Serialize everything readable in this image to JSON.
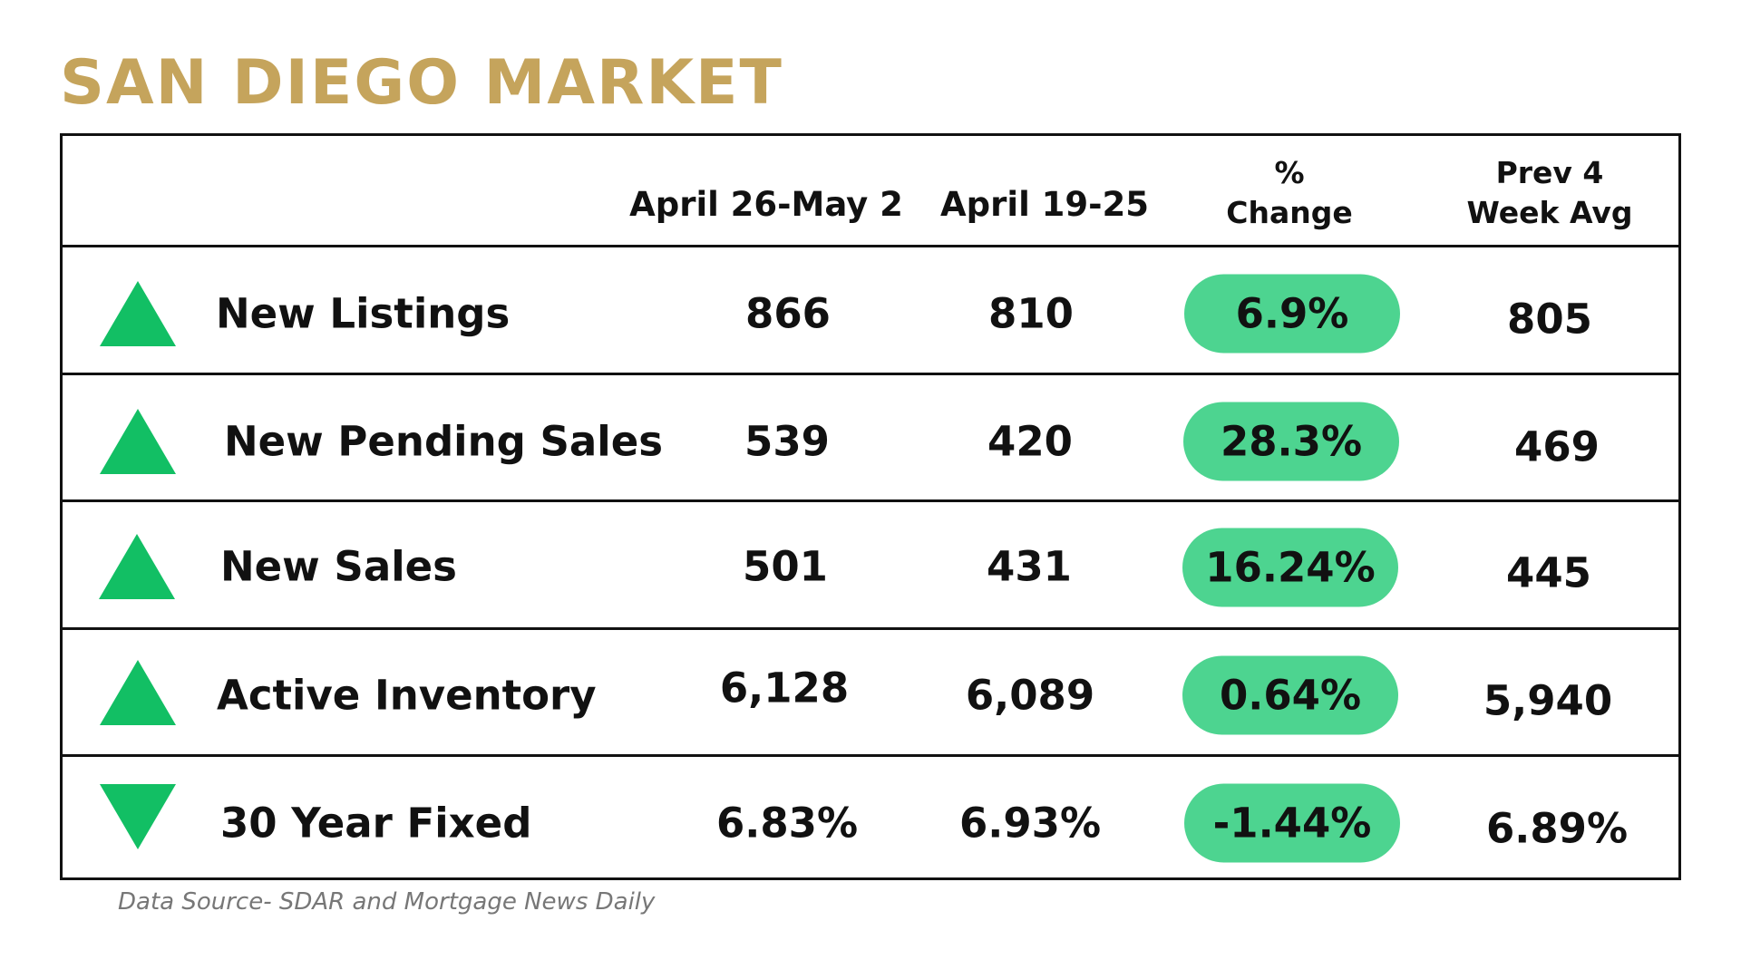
{
  "title": "SAN DIEGO MARKET",
  "colors": {
    "title": "#c5a45c",
    "pill": "#4dd490",
    "arrow": "#12bf64"
  },
  "header": {
    "col1": "April 26-May 2",
    "col2": "April 19-25",
    "col3_line1": "%",
    "col3_line2": "Change",
    "col4_line1": "Prev 4",
    "col4_line2": "Week Avg"
  },
  "rows": [
    {
      "trend": "up",
      "label": "New Listings",
      "current": "866",
      "previous": "810",
      "change": "6.9%",
      "avg": "805"
    },
    {
      "trend": "up",
      "label": "New Pending Sales",
      "current": "539",
      "previous": "420",
      "change": "28.3%",
      "avg": "469"
    },
    {
      "trend": "up",
      "label": "New Sales",
      "current": "501",
      "previous": "431",
      "change": "16.24%",
      "avg": "445"
    },
    {
      "trend": "up",
      "label": "Active Inventory",
      "current": "6,128",
      "previous": "6,089",
      "change": "0.64%",
      "avg": "5,940"
    },
    {
      "trend": "down",
      "label": "30 Year Fixed",
      "current": "6.83%",
      "previous": "6.93%",
      "change": "-1.44%",
      "avg": "6.89%"
    }
  ],
  "source": "Data Source- SDAR and Mortgage News Daily"
}
